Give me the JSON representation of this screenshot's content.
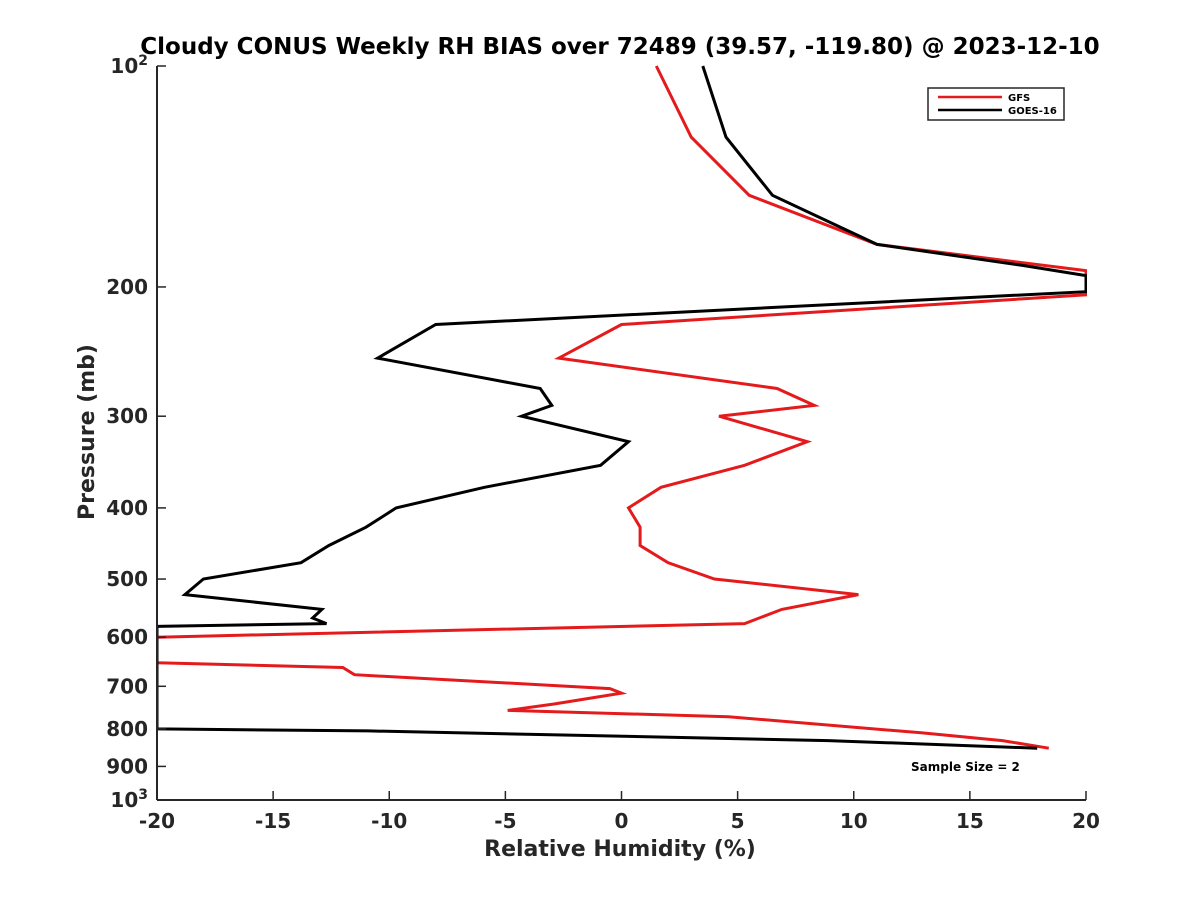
{
  "chart_data": {
    "type": "line",
    "title": "Cloudy CONUS Weekly RH BIAS over 72489 (39.57, -119.80) @ 2023-12-10",
    "xlabel": "Relative Humidity (%)",
    "ylabel": "Pressure (mb)",
    "xlim": [
      -20,
      20
    ],
    "ylim": [
      100,
      1000
    ],
    "y_scale": "log",
    "y_reversed": true,
    "grid": false,
    "legend_position": "top-right",
    "x_ticks": [
      {
        "value": -20,
        "label": "-20"
      },
      {
        "value": -15,
        "label": "-15"
      },
      {
        "value": -10,
        "label": "-10"
      },
      {
        "value": -5,
        "label": "-5"
      },
      {
        "value": 0,
        "label": "0"
      },
      {
        "value": 5,
        "label": "5"
      },
      {
        "value": 10,
        "label": "10"
      },
      {
        "value": 15,
        "label": "15"
      },
      {
        "value": 20,
        "label": "20"
      }
    ],
    "y_ticks": [
      {
        "value": 100,
        "base": "10",
        "exp": "2"
      },
      {
        "value": 200,
        "label": "200"
      },
      {
        "value": 300,
        "label": "300"
      },
      {
        "value": 400,
        "label": "400"
      },
      {
        "value": 500,
        "label": "500"
      },
      {
        "value": 600,
        "label": "600"
      },
      {
        "value": 700,
        "label": "700"
      },
      {
        "value": 800,
        "label": "800"
      },
      {
        "value": 900,
        "label": "900"
      },
      {
        "value": 1000,
        "base": "10",
        "exp": "3"
      }
    ],
    "series": [
      {
        "name": "GFS",
        "color": "#e41a1c",
        "points": [
          [
            1.5,
            100
          ],
          [
            3,
            125
          ],
          [
            5.5,
            150
          ],
          [
            11,
            175
          ],
          [
            20,
            190
          ],
          [
            20,
            205
          ],
          [
            0,
            225
          ],
          [
            -2.7,
            250
          ],
          [
            6.7,
            275
          ],
          [
            8.3,
            290
          ],
          [
            4.2,
            300
          ],
          [
            8,
            325
          ],
          [
            5.3,
            350
          ],
          [
            1.7,
            375
          ],
          [
            0.3,
            400
          ],
          [
            0.8,
            425
          ],
          [
            0.8,
            450
          ],
          [
            2,
            475
          ],
          [
            4,
            500
          ],
          [
            10.2,
            525
          ],
          [
            6.9,
            550
          ],
          [
            5.3,
            575
          ],
          [
            -20,
            600
          ],
          [
            -20,
            650
          ],
          [
            -12,
            660
          ],
          [
            -11.5,
            675
          ],
          [
            -0.5,
            705
          ],
          [
            0,
            715
          ],
          [
            -2.9,
            740
          ],
          [
            -4.9,
            755
          ],
          [
            4.6,
            770
          ],
          [
            12.9,
            810
          ],
          [
            16.4,
            830
          ],
          [
            18.4,
            850
          ]
        ]
      },
      {
        "name": "GOES-16",
        "color": "#000000",
        "points": [
          [
            3.5,
            100
          ],
          [
            4.5,
            125
          ],
          [
            6.5,
            150
          ],
          [
            11,
            175
          ],
          [
            17.3,
            187
          ],
          [
            20,
            193
          ],
          [
            20,
            203
          ],
          [
            -8,
            225
          ],
          [
            -10.5,
            250
          ],
          [
            -3.5,
            275
          ],
          [
            -3,
            290
          ],
          [
            -4.3,
            300
          ],
          [
            0.3,
            325
          ],
          [
            -0.9,
            350
          ],
          [
            -5.9,
            375
          ],
          [
            -9.7,
            400
          ],
          [
            -11,
            425
          ],
          [
            -12.6,
            450
          ],
          [
            -13.8,
            475
          ],
          [
            -18,
            500
          ],
          [
            -18.8,
            525
          ],
          [
            -12.9,
            550
          ],
          [
            -13.3,
            565
          ],
          [
            -12.7,
            575
          ],
          [
            -20,
            580
          ],
          [
            -20,
            800
          ],
          [
            -10.9,
            805
          ],
          [
            8.9,
            830
          ],
          [
            17.9,
            850
          ]
        ]
      }
    ],
    "annotation": "Sample Size = 2"
  }
}
